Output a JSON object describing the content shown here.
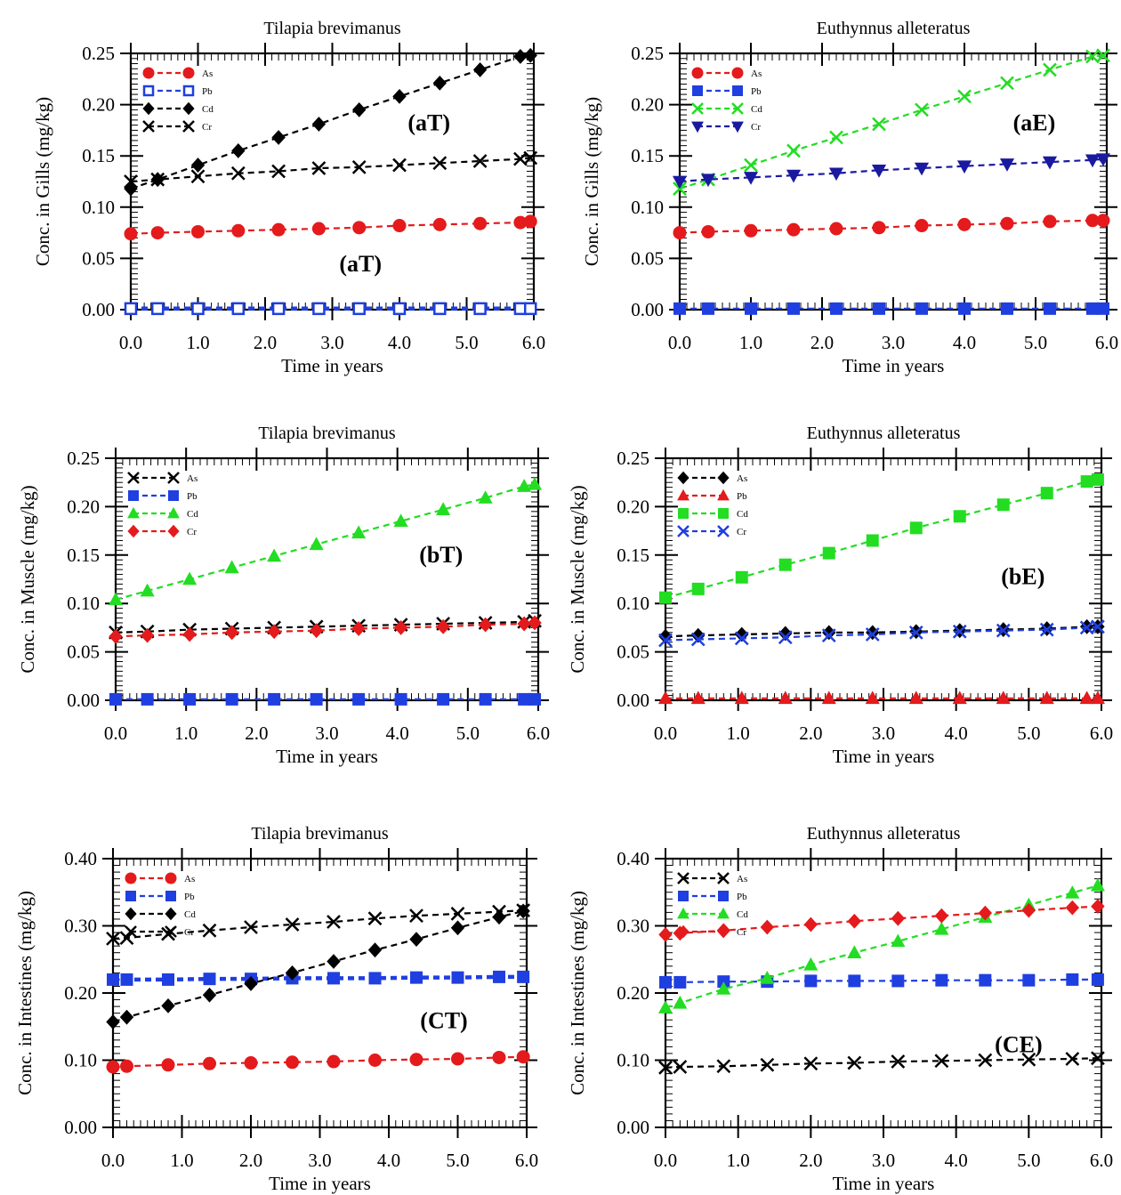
{
  "chart_data": [
    {
      "id": "aT",
      "type": "line",
      "title": "Tilapia brevimanus",
      "xlabel": "Time in years",
      "ylabel": "Conc. in Gills (mg/kg)",
      "xlim": [
        0,
        6
      ],
      "ylim": [
        0,
        0.25
      ],
      "xticks": [
        "0.0",
        "1.0",
        "2.0",
        "3.0",
        "4.0",
        "5.0",
        "6.0"
      ],
      "yticks": [
        "0.00",
        "0.05",
        "0.10",
        "0.15",
        "0.20",
        "0.25"
      ],
      "legend_position": "top-left",
      "panel_labels": [
        "(aT)",
        "(aT)"
      ],
      "x": [
        0,
        0.4,
        1.0,
        1.6,
        2.2,
        2.8,
        3.4,
        4.0,
        4.6,
        5.2,
        5.8,
        5.95
      ],
      "series": [
        {
          "name": "As",
          "color": "#e41a1c",
          "marker": "circle",
          "values": [
            0.074,
            0.075,
            0.076,
            0.077,
            0.078,
            0.079,
            0.08,
            0.082,
            0.083,
            0.084,
            0.085,
            0.086
          ]
        },
        {
          "name": "Pb",
          "color": "#1f3fe0",
          "marker": "square-open",
          "values": [
            0.001,
            0.001,
            0.001,
            0.001,
            0.001,
            0.001,
            0.001,
            0.001,
            0.001,
            0.001,
            0.001,
            0.001
          ]
        },
        {
          "name": "Cd",
          "color": "#000000",
          "marker": "diamond",
          "values": [
            0.118,
            0.127,
            0.141,
            0.155,
            0.168,
            0.181,
            0.195,
            0.208,
            0.221,
            0.234,
            0.247,
            0.248
          ]
        },
        {
          "name": "Cr",
          "color": "#000000",
          "marker": "x",
          "values": [
            0.125,
            0.127,
            0.13,
            0.133,
            0.135,
            0.138,
            0.139,
            0.141,
            0.143,
            0.145,
            0.147,
            0.148
          ]
        }
      ]
    },
    {
      "id": "aE",
      "type": "line",
      "title": "Euthynnus alleteratus",
      "xlabel": "Time in years",
      "ylabel": "Conc. in Gills (mg/kg)",
      "xlim": [
        0,
        6
      ],
      "ylim": [
        0,
        0.25
      ],
      "xticks": [
        "0.0",
        "1.0",
        "2.0",
        "3.0",
        "4.0",
        "5.0",
        "6.0"
      ],
      "yticks": [
        "0.00",
        "0.05",
        "0.10",
        "0.15",
        "0.20",
        "0.25"
      ],
      "legend_position": "top-left",
      "panel_labels": [
        "(aE)"
      ],
      "x": [
        0,
        0.4,
        1.0,
        1.6,
        2.2,
        2.8,
        3.4,
        4.0,
        4.6,
        5.2,
        5.8,
        5.95
      ],
      "series": [
        {
          "name": "As",
          "color": "#e41a1c",
          "marker": "circle",
          "values": [
            0.075,
            0.076,
            0.077,
            0.078,
            0.079,
            0.08,
            0.082,
            0.083,
            0.084,
            0.086,
            0.087,
            0.087
          ]
        },
        {
          "name": "Pb",
          "color": "#1f3fe0",
          "marker": "square",
          "values": [
            0.001,
            0.001,
            0.001,
            0.001,
            0.001,
            0.001,
            0.001,
            0.001,
            0.001,
            0.001,
            0.001,
            0.001
          ]
        },
        {
          "name": "Cd",
          "color": "#22dd22",
          "marker": "x",
          "values": [
            0.118,
            0.127,
            0.141,
            0.155,
            0.168,
            0.181,
            0.195,
            0.208,
            0.221,
            0.234,
            0.247,
            0.248
          ]
        },
        {
          "name": "Cr",
          "color": "#1a1aa0",
          "marker": "triangle-down",
          "values": [
            0.125,
            0.127,
            0.129,
            0.131,
            0.133,
            0.136,
            0.138,
            0.14,
            0.142,
            0.144,
            0.146,
            0.147
          ]
        }
      ]
    },
    {
      "id": "bT",
      "type": "line",
      "title": "Tilapia brevimanus",
      "xlabel": "Time in years",
      "ylabel": "Conc. in Muscle (mg/kg)",
      "xlim": [
        0,
        6
      ],
      "ylim": [
        0,
        0.25
      ],
      "xticks": [
        "0.0",
        "1.0",
        "2.0",
        "3.0",
        "4.0",
        "5.0",
        "6.0"
      ],
      "yticks": [
        "0.00",
        "0.05",
        "0.10",
        "0.15",
        "0.20",
        "0.25"
      ],
      "legend_position": "top-left",
      "panel_labels": [
        "(bT)"
      ],
      "x": [
        0,
        0.45,
        1.05,
        1.65,
        2.25,
        2.85,
        3.45,
        4.05,
        4.65,
        5.25,
        5.8,
        5.95
      ],
      "series": [
        {
          "name": "As",
          "color": "#000000",
          "marker": "x",
          "values": [
            0.07,
            0.071,
            0.073,
            0.074,
            0.075,
            0.076,
            0.077,
            0.078,
            0.079,
            0.08,
            0.081,
            0.082
          ]
        },
        {
          "name": "Pb",
          "color": "#1f3fe0",
          "marker": "square",
          "values": [
            0.001,
            0.001,
            0.001,
            0.001,
            0.001,
            0.001,
            0.001,
            0.001,
            0.001,
            0.001,
            0.001,
            0.001
          ]
        },
        {
          "name": "Cd",
          "color": "#22dd22",
          "marker": "triangle",
          "values": [
            0.104,
            0.113,
            0.125,
            0.137,
            0.149,
            0.161,
            0.173,
            0.185,
            0.197,
            0.209,
            0.221,
            0.223
          ]
        },
        {
          "name": "Cr",
          "color": "#e41a1c",
          "marker": "diamond",
          "values": [
            0.066,
            0.067,
            0.068,
            0.07,
            0.071,
            0.072,
            0.074,
            0.075,
            0.076,
            0.078,
            0.079,
            0.08
          ]
        }
      ]
    },
    {
      "id": "bE",
      "type": "line",
      "title": "Euthynnus alleteratus",
      "xlabel": "Time in years",
      "ylabel": "Conc. in Muscle (mg/kg)",
      "xlim": [
        0,
        6
      ],
      "ylim": [
        0,
        0.25
      ],
      "xticks": [
        "0.0",
        "1.0",
        "2.0",
        "3.0",
        "4.0",
        "5.0",
        "6.0"
      ],
      "yticks": [
        "0.00",
        "0.05",
        "0.10",
        "0.15",
        "0.20",
        "0.25"
      ],
      "legend_position": "top-left",
      "panel_labels": [
        "(bE)"
      ],
      "x": [
        0,
        0.45,
        1.05,
        1.65,
        2.25,
        2.85,
        3.45,
        4.05,
        4.65,
        5.25,
        5.8,
        5.95
      ],
      "series": [
        {
          "name": "As",
          "color": "#000000",
          "marker": "diamond",
          "values": [
            0.066,
            0.067,
            0.068,
            0.069,
            0.07,
            0.07,
            0.071,
            0.072,
            0.073,
            0.074,
            0.076,
            0.076
          ]
        },
        {
          "name": "Pb",
          "color": "#e41a1c",
          "marker": "triangle",
          "values": [
            0.002,
            0.002,
            0.002,
            0.002,
            0.002,
            0.002,
            0.002,
            0.002,
            0.002,
            0.002,
            0.002,
            0.002
          ]
        },
        {
          "name": "Cd",
          "color": "#22dd22",
          "marker": "square",
          "values": [
            0.106,
            0.115,
            0.127,
            0.14,
            0.152,
            0.165,
            0.178,
            0.19,
            0.202,
            0.214,
            0.226,
            0.228
          ]
        },
        {
          "name": "Cr",
          "color": "#1f3fe0",
          "marker": "x",
          "values": [
            0.062,
            0.063,
            0.064,
            0.065,
            0.067,
            0.068,
            0.07,
            0.071,
            0.072,
            0.073,
            0.075,
            0.076
          ]
        }
      ]
    },
    {
      "id": "CT",
      "type": "line",
      "title": "Tilapia brevimanus",
      "xlabel": "Time in years",
      "ylabel": "Conc. in Intestines (mg/kg)",
      "xlim": [
        0,
        6
      ],
      "ylim": [
        0,
        0.4
      ],
      "xticks": [
        "0.0",
        "1.0",
        "2.0",
        "3.0",
        "4.0",
        "5.0",
        "6.0"
      ],
      "yticks": [
        "0.00",
        "0.10",
        "0.20",
        "0.30",
        "0.40"
      ],
      "legend_position": "top-left",
      "panel_labels": [
        "(CT)"
      ],
      "x": [
        0,
        0.2,
        0.8,
        1.4,
        2.0,
        2.6,
        3.2,
        3.8,
        4.4,
        5.0,
        5.6,
        5.95
      ],
      "series": [
        {
          "name": "As",
          "color": "#e41a1c",
          "marker": "circle",
          "values": [
            0.09,
            0.091,
            0.093,
            0.095,
            0.096,
            0.097,
            0.098,
            0.1,
            0.101,
            0.102,
            0.104,
            0.105
          ]
        },
        {
          "name": "Pb",
          "color": "#1f3fe0",
          "marker": "square",
          "values": [
            0.22,
            0.22,
            0.22,
            0.221,
            0.221,
            0.222,
            0.222,
            0.222,
            0.223,
            0.223,
            0.224,
            0.224
          ]
        },
        {
          "name": "Cd",
          "color": "#000000",
          "marker": "diamond",
          "values": [
            0.157,
            0.164,
            0.181,
            0.197,
            0.214,
            0.23,
            0.247,
            0.264,
            0.28,
            0.297,
            0.313,
            0.322
          ]
        },
        {
          "name": "Cr",
          "color": "#000000",
          "marker": "x",
          "values": [
            0.281,
            0.282,
            0.288,
            0.293,
            0.298,
            0.302,
            0.306,
            0.311,
            0.315,
            0.318,
            0.321,
            0.323
          ]
        }
      ]
    },
    {
      "id": "CE",
      "type": "line",
      "title": "Euthynnus alleteratus",
      "xlabel": "Time in years",
      "ylabel": "Conc. in Intestines (mg/kg)",
      "xlim": [
        0,
        6
      ],
      "ylim": [
        0,
        0.4
      ],
      "xticks": [
        "0.0",
        "1.0",
        "2.0",
        "3.0",
        "4.0",
        "5.0",
        "6.0"
      ],
      "yticks": [
        "0.00",
        "0.10",
        "0.20",
        "0.30",
        "0.40"
      ],
      "legend_position": "top-left",
      "panel_labels": [
        "(CE)"
      ],
      "x": [
        0,
        0.2,
        0.8,
        1.4,
        2.0,
        2.6,
        3.2,
        3.8,
        4.4,
        5.0,
        5.6,
        5.95
      ],
      "series": [
        {
          "name": "As",
          "color": "#000000",
          "marker": "x",
          "values": [
            0.089,
            0.09,
            0.091,
            0.093,
            0.095,
            0.096,
            0.098,
            0.099,
            0.1,
            0.101,
            0.102,
            0.103
          ]
        },
        {
          "name": "Pb",
          "color": "#1f3fe0",
          "marker": "square",
          "values": [
            0.216,
            0.216,
            0.217,
            0.217,
            0.218,
            0.218,
            0.218,
            0.219,
            0.219,
            0.219,
            0.22,
            0.22
          ]
        },
        {
          "name": "Cd",
          "color": "#22dd22",
          "marker": "triangle",
          "values": [
            0.178,
            0.185,
            0.206,
            0.222,
            0.242,
            0.26,
            0.277,
            0.295,
            0.313,
            0.331,
            0.349,
            0.36
          ]
        },
        {
          "name": "Cr",
          "color": "#e41a1c",
          "marker": "diamond",
          "values": [
            0.287,
            0.289,
            0.293,
            0.298,
            0.302,
            0.307,
            0.311,
            0.315,
            0.319,
            0.323,
            0.327,
            0.329
          ]
        }
      ]
    }
  ]
}
